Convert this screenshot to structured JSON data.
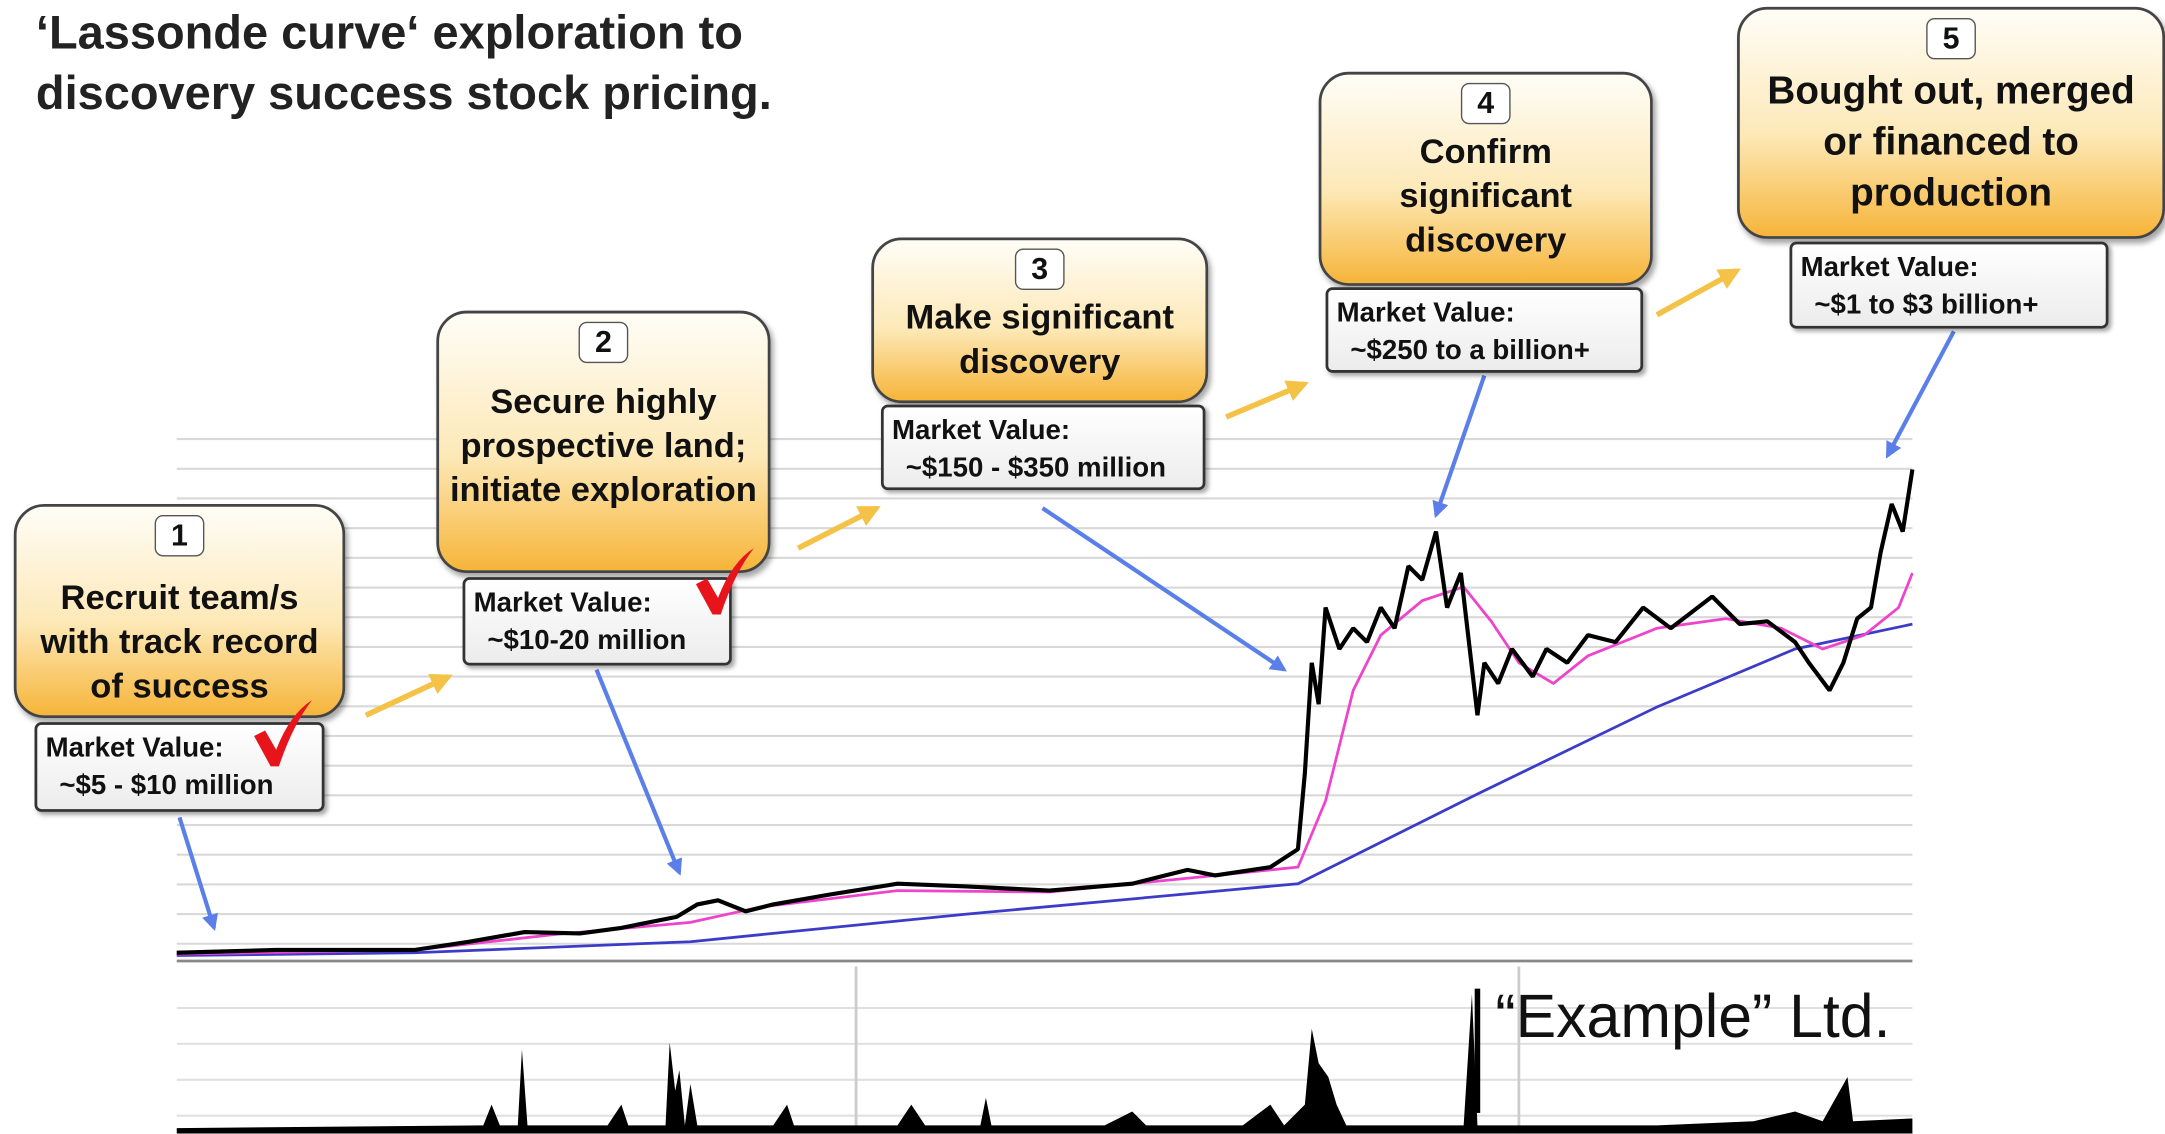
{
  "title_lines": [
    "‘Lassonde curve‘ exploration to",
    "discovery success stock pricing."
  ],
  "stages": [
    {
      "number": "1",
      "label": "Recruit team/s with track record of success",
      "market_value_label": "Market Value:",
      "market_value": "~$5 - $10 million"
    },
    {
      "number": "2",
      "label": "Secure highly prospective land; initiate exploration",
      "market_value_label": "Market Value:",
      "market_value": "~$10-20 million"
    },
    {
      "number": "3",
      "label": "Make significant discovery",
      "market_value_label": "Market Value:",
      "market_value": "~$150 - $350 million"
    },
    {
      "number": "4",
      "label": "Confirm significant discovery",
      "market_value_label": "Market Value:",
      "market_value": "~$250 to a billion+"
    },
    {
      "number": "5",
      "label": "Bought out, merged or financed to production",
      "market_value_label": "Market Value:",
      "market_value": "~$1 to $3 billion+"
    }
  ],
  "company": "“Example” Ltd."
}
